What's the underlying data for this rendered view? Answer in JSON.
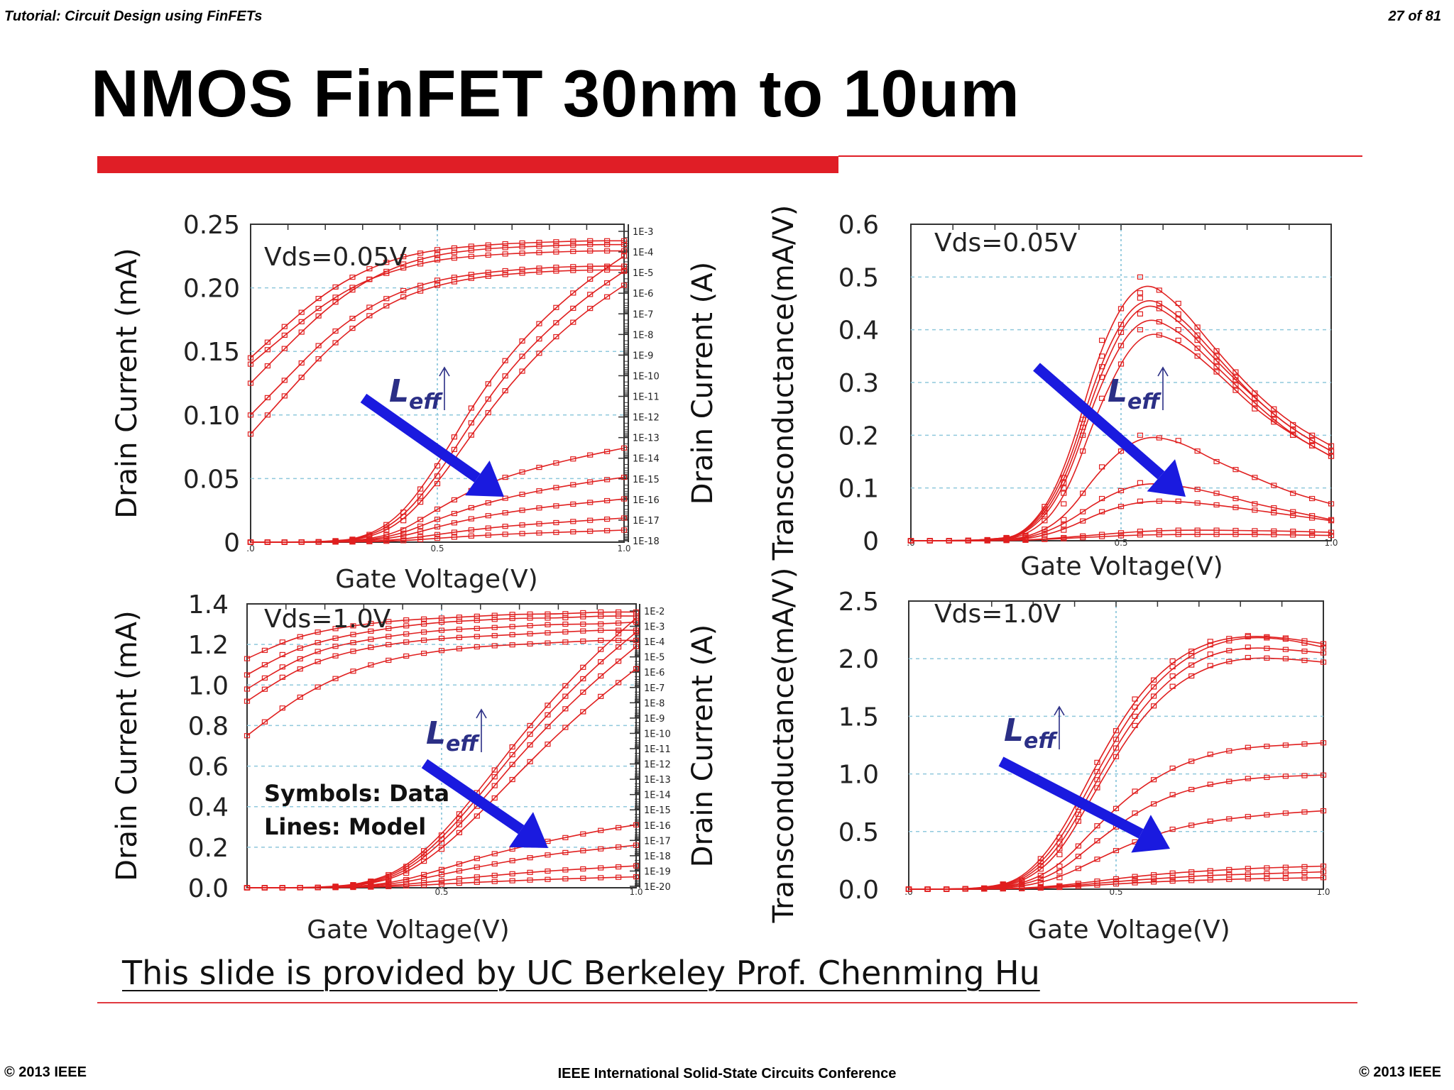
{
  "header": {
    "left": "Tutorial: Circuit Design using FinFETs",
    "right": "27 of 81"
  },
  "slide": {
    "title": "NMOS FinFET 30nm to 10um",
    "credit": "This slide is provided by UC Berkeley Prof. Chenming Hu"
  },
  "footer": {
    "left": "© 2013 IEEE",
    "center": "IEEE International Solid-State Circuits Conference",
    "right": "© 2013 IEEE"
  },
  "colors": {
    "data": "#e01f1f",
    "arrow": "#1a1adf",
    "grid": "#8fc8dc",
    "accent": "#e01e26"
  },
  "legend_note": {
    "line1": "Symbols: Data",
    "line2": "Lines: Model"
  },
  "leff_label": {
    "main": "L",
    "sub": "eff"
  },
  "chart_data": [
    {
      "type": "line",
      "annotation": "Vds=0.05V",
      "xlabel": "Gate Voltage(V)",
      "ylabel": "Drain Current (mA)",
      "ylabel_right": "Drain Current (A)",
      "xlim": [
        0,
        1.0
      ],
      "ylim": [
        0,
        0.25
      ],
      "xticks": [
        ".0",
        "0.5",
        "1.0"
      ],
      "yticks": [
        "0",
        "0.05",
        "0.10",
        "0.15",
        "0.20",
        "0.25"
      ],
      "ytick_values": [
        0,
        0.05,
        0.1,
        0.15,
        0.2,
        0.25
      ],
      "right_ticks": [
        "1E-3",
        "1E-4",
        "1E-5",
        "1E-6",
        "1E-7",
        "1E-8",
        "1E-9",
        "1E-10",
        "1E-11",
        "1E-12",
        "1E-13",
        "1E-14",
        "1E-15",
        "1E-16",
        "1E-17",
        "1E-18"
      ],
      "log_series": [
        {
          "values": [
            0.145,
            0.172,
            0.196,
            0.213,
            0.224,
            0.23,
            0.233,
            0.235,
            0.236,
            0.237,
            0.237
          ]
        },
        {
          "values": [
            0.125,
            0.155,
            0.183,
            0.204,
            0.218,
            0.226,
            0.23,
            0.232,
            0.233,
            0.234,
            0.234
          ]
        },
        {
          "values": [
            0.14,
            0.165,
            0.188,
            0.205,
            0.215,
            0.222,
            0.225,
            0.227,
            0.228,
            0.229,
            0.229
          ]
        },
        {
          "values": [
            0.1,
            0.13,
            0.16,
            0.182,
            0.197,
            0.206,
            0.211,
            0.214,
            0.216,
            0.217,
            0.217
          ]
        },
        {
          "values": [
            0.085,
            0.118,
            0.15,
            0.175,
            0.192,
            0.202,
            0.208,
            0.211,
            0.213,
            0.214,
            0.214
          ]
        }
      ],
      "linear_series": [
        {
          "values": [
            0,
            0,
            0.0005,
            0.003,
            0.02,
            0.06,
            0.11,
            0.15,
            0.18,
            0.205,
            0.225
          ]
        },
        {
          "values": [
            0,
            0,
            0.0004,
            0.0025,
            0.017,
            0.052,
            0.098,
            0.138,
            0.168,
            0.193,
            0.213
          ]
        },
        {
          "values": [
            0,
            0,
            0.0003,
            0.002,
            0.014,
            0.046,
            0.088,
            0.126,
            0.157,
            0.182,
            0.202
          ]
        },
        {
          "values": [
            0,
            0,
            0.0002,
            0.0015,
            0.008,
            0.026,
            0.042,
            0.053,
            0.061,
            0.068,
            0.074
          ]
        },
        {
          "values": [
            0,
            0,
            0.0001,
            0.001,
            0.006,
            0.018,
            0.028,
            0.036,
            0.042,
            0.047,
            0.051
          ]
        },
        {
          "values": [
            0,
            0,
            0.0001,
            0.0008,
            0.004,
            0.012,
            0.019,
            0.024,
            0.028,
            0.031,
            0.034
          ]
        },
        {
          "values": [
            0,
            0,
            0,
            0.0004,
            0.002,
            0.006,
            0.01,
            0.013,
            0.015,
            0.017,
            0.019
          ]
        },
        {
          "values": [
            0,
            0,
            0,
            0.0002,
            0.001,
            0.003,
            0.005,
            0.0065,
            0.0075,
            0.0085,
            0.0095
          ]
        }
      ]
    },
    {
      "type": "line",
      "annotation": "Vds=0.05V",
      "xlabel": "Gate Voltage(V)",
      "ylabel": "Transconductance(mA/V)",
      "xlim": [
        0,
        1.0
      ],
      "ylim": [
        0,
        0.6
      ],
      "xticks": [
        ".0",
        "0.5",
        "1.0"
      ],
      "yticks": [
        "0",
        "0.1",
        "0.2",
        "0.3",
        "0.4",
        "0.5",
        "0.6"
      ],
      "ytick_values": [
        0,
        0.1,
        0.2,
        0.3,
        0.4,
        0.5,
        0.6
      ],
      "series": [
        {
          "values": [
            0,
            0,
            0.002,
            0.01,
            0.12,
            0.38,
            0.5,
            0.45,
            0.36,
            0.28,
            0.22,
            0.18
          ]
        },
        {
          "values": [
            0,
            0,
            0.002,
            0.01,
            0.11,
            0.35,
            0.47,
            0.43,
            0.35,
            0.27,
            0.21,
            0.17
          ]
        },
        {
          "values": [
            0,
            0,
            0.001,
            0.009,
            0.1,
            0.33,
            0.46,
            0.42,
            0.34,
            0.27,
            0.21,
            0.17
          ]
        },
        {
          "values": [
            0,
            0,
            0.001,
            0.008,
            0.09,
            0.31,
            0.43,
            0.4,
            0.33,
            0.26,
            0.2,
            0.16
          ]
        },
        {
          "values": [
            0,
            0,
            0.001,
            0.006,
            0.07,
            0.27,
            0.4,
            0.38,
            0.32,
            0.25,
            0.2,
            0.16
          ]
        },
        {
          "values": [
            0,
            0,
            0.001,
            0.004,
            0.04,
            0.14,
            0.2,
            0.19,
            0.15,
            0.12,
            0.09,
            0.07
          ]
        },
        {
          "values": [
            0,
            0,
            0,
            0.003,
            0.03,
            0.08,
            0.11,
            0.105,
            0.09,
            0.07,
            0.055,
            0.04
          ]
        },
        {
          "values": [
            0,
            0,
            0,
            0.002,
            0.02,
            0.055,
            0.075,
            0.075,
            0.068,
            0.058,
            0.048,
            0.038
          ]
        },
        {
          "values": [
            0,
            0,
            0,
            0.001,
            0.006,
            0.012,
            0.018,
            0.02,
            0.02,
            0.019,
            0.018,
            0.016
          ]
        },
        {
          "values": [
            0,
            0,
            0,
            0.001,
            0.004,
            0.008,
            0.011,
            0.012,
            0.012,
            0.012,
            0.011,
            0.01
          ]
        }
      ]
    },
    {
      "type": "line",
      "annotation": "Vds=1.0V",
      "xlabel": "Gate Voltage(V)",
      "ylabel": "Drain Current (mA)",
      "ylabel_right": "Drain Current (A)",
      "xlim": [
        0,
        1.0
      ],
      "ylim": [
        0,
        1.4
      ],
      "xticks": [
        "0.5",
        "1.0"
      ],
      "yticks": [
        "0.0",
        "0.2",
        "0.4",
        "0.6",
        "0.8",
        "1.0",
        "1.2",
        "1.4"
      ],
      "ytick_values": [
        0,
        0.2,
        0.4,
        0.6,
        0.8,
        1.0,
        1.2,
        1.4
      ],
      "right_ticks": [
        "1E-2",
        "1E-3",
        "1E-4",
        "1E-5",
        "1E-6",
        "1E-7",
        "1E-8",
        "1E-9",
        "1E-10",
        "1E-11",
        "1E-12",
        "1E-13",
        "1E-14",
        "1E-15",
        "1E-16",
        "1E-17",
        "1E-18",
        "1E-19",
        "1E-20"
      ],
      "log_series": [
        {
          "values": [
            1.13,
            1.22,
            1.27,
            1.3,
            1.32,
            1.33,
            1.34,
            1.35,
            1.35,
            1.36,
            1.36
          ]
        },
        {
          "values": [
            1.05,
            1.16,
            1.22,
            1.26,
            1.29,
            1.31,
            1.32,
            1.33,
            1.33,
            1.34,
            1.34
          ]
        },
        {
          "values": [
            0.98,
            1.1,
            1.18,
            1.22,
            1.25,
            1.27,
            1.28,
            1.29,
            1.3,
            1.3,
            1.31
          ]
        },
        {
          "values": [
            0.92,
            1.05,
            1.13,
            1.18,
            1.21,
            1.23,
            1.24,
            1.25,
            1.26,
            1.27,
            1.27
          ]
        },
        {
          "values": [
            0.75,
            0.9,
            1.01,
            1.09,
            1.14,
            1.17,
            1.19,
            1.2,
            1.21,
            1.22,
            1.22
          ]
        }
      ],
      "linear_series": [
        {
          "values": [
            0,
            0,
            0.003,
            0.02,
            0.09,
            0.26,
            0.49,
            0.74,
            0.96,
            1.16,
            1.33
          ]
        },
        {
          "values": [
            0,
            0,
            0.002,
            0.018,
            0.08,
            0.24,
            0.46,
            0.7,
            0.91,
            1.1,
            1.26
          ]
        },
        {
          "values": [
            0,
            0,
            0.002,
            0.015,
            0.07,
            0.22,
            0.42,
            0.65,
            0.85,
            1.03,
            1.19
          ]
        },
        {
          "values": [
            0,
            0,
            0.001,
            0.012,
            0.06,
            0.19,
            0.37,
            0.57,
            0.76,
            0.93,
            1.08
          ]
        },
        {
          "values": [
            0,
            0,
            0.001,
            0.008,
            0.035,
            0.09,
            0.15,
            0.2,
            0.24,
            0.28,
            0.31
          ]
        },
        {
          "values": [
            0,
            0,
            0.0008,
            0.006,
            0.025,
            0.065,
            0.105,
            0.14,
            0.17,
            0.19,
            0.21
          ]
        },
        {
          "values": [
            0,
            0,
            0.0005,
            0.004,
            0.015,
            0.035,
            0.055,
            0.072,
            0.086,
            0.097,
            0.108
          ]
        },
        {
          "values": [
            0,
            0,
            0.0003,
            0.002,
            0.008,
            0.018,
            0.028,
            0.036,
            0.043,
            0.049,
            0.054
          ]
        }
      ]
    },
    {
      "type": "line",
      "annotation": "Vds=1.0V",
      "xlabel": "Gate Voltage(V)",
      "ylabel": "Transconductance(mA/V)",
      "xlim": [
        0,
        1.0
      ],
      "ylim": [
        0,
        2.5
      ],
      "xticks": [
        ".0",
        "0.5",
        "1.0"
      ],
      "yticks": [
        "0.0",
        "0.5",
        "1.0",
        "1.5",
        "2.0",
        "2.5"
      ],
      "ytick_values": [
        0,
        0.5,
        1.0,
        1.5,
        2.0,
        2.5
      ],
      "series": [
        {
          "values": [
            0,
            0,
            0.01,
            0.08,
            0.45,
            1.1,
            1.65,
            1.98,
            2.15,
            2.2,
            2.18,
            2.13
          ]
        },
        {
          "values": [
            0,
            0,
            0.01,
            0.07,
            0.4,
            1.02,
            1.58,
            1.93,
            2.12,
            2.19,
            2.17,
            2.1
          ]
        },
        {
          "values": [
            0,
            0,
            0.008,
            0.06,
            0.35,
            0.95,
            1.5,
            1.85,
            2.04,
            2.1,
            2.08,
            2.05
          ]
        },
        {
          "values": [
            0,
            0,
            0.007,
            0.05,
            0.3,
            0.88,
            1.42,
            1.76,
            1.94,
            2.01,
            2.0,
            1.97
          ]
        },
        {
          "values": [
            0,
            0,
            0.005,
            0.04,
            0.2,
            0.55,
            0.85,
            1.05,
            1.17,
            1.23,
            1.25,
            1.27
          ]
        },
        {
          "values": [
            0,
            0,
            0.004,
            0.03,
            0.15,
            0.42,
            0.66,
            0.82,
            0.91,
            0.96,
            0.98,
            0.99
          ]
        },
        {
          "values": [
            0,
            0,
            0.003,
            0.02,
            0.1,
            0.26,
            0.41,
            0.52,
            0.59,
            0.63,
            0.66,
            0.68
          ]
        },
        {
          "values": [
            0,
            0,
            0.001,
            0.008,
            0.03,
            0.07,
            0.11,
            0.14,
            0.16,
            0.18,
            0.19,
            0.2
          ]
        },
        {
          "values": [
            0,
            0,
            0.001,
            0.006,
            0.022,
            0.05,
            0.08,
            0.1,
            0.12,
            0.13,
            0.14,
            0.15
          ]
        },
        {
          "values": [
            0,
            0,
            0.001,
            0.004,
            0.015,
            0.035,
            0.055,
            0.07,
            0.08,
            0.09,
            0.095,
            0.1
          ]
        }
      ]
    }
  ]
}
